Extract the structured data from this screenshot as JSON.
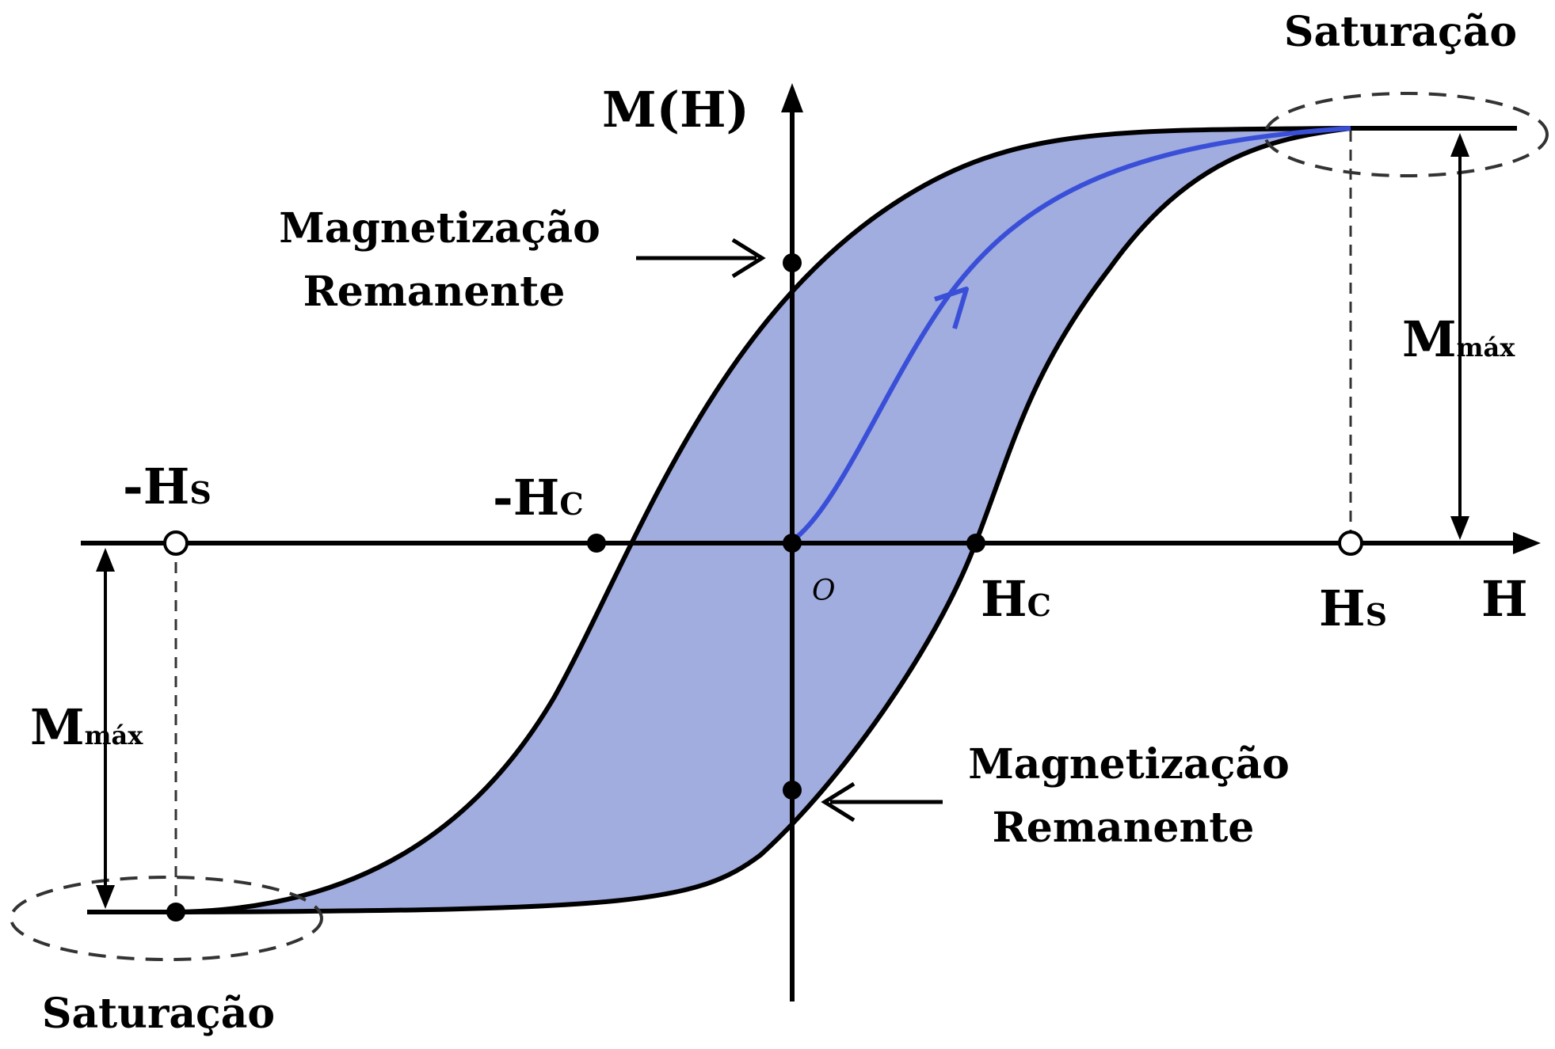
{
  "diagram": {
    "axes": {
      "y_label": "M(H)",
      "x_label": "H",
      "origin_label": "O"
    },
    "points": {
      "neg_hs": {
        "main": "-H",
        "sub": "S"
      },
      "neg_hc": {
        "main": "-H",
        "sub": "C"
      },
      "hc": {
        "main": "H",
        "sub": "C"
      },
      "hs": {
        "main": "H",
        "sub": "S"
      }
    },
    "annotations": {
      "remanence_top": {
        "line1": "Magnetização",
        "line2": "Remanente"
      },
      "remanence_bottom": {
        "line1": "Magnetização",
        "line2": "Remanente"
      },
      "saturation_top": "Saturação",
      "saturation_bottom": "Saturação",
      "mmax_right": {
        "main": "M",
        "sub": "máx"
      },
      "mmax_left": {
        "main": "M",
        "sub": "máx"
      }
    },
    "colors": {
      "loop_fill": "#a1acdf",
      "loop_stroke": "#000000",
      "initial_curve": "#3a4fd8",
      "axes": "#000000",
      "dashed_guides": "#333333"
    }
  }
}
